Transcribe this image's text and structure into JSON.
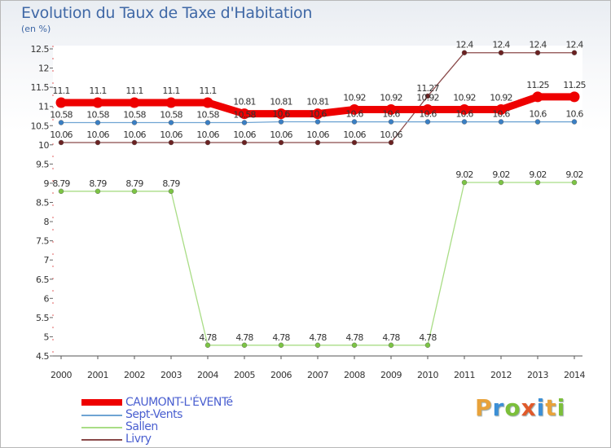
{
  "title": "Evolution du Taux de Taxe d'Habitation",
  "unit": "(en %)",
  "brand": "Proxiti",
  "brand_colors": [
    "#e8a23a",
    "#3c8fd6",
    "#7cbf3a",
    "#e05a2b",
    "#3c8fd6",
    "#e8a23a",
    "#7cbf3a"
  ],
  "chart_data": {
    "type": "line",
    "title": "Evolution du Taux de Taxe d'Habitation",
    "ylabel": "(en %)",
    "xlabel": "",
    "x": [
      "2000",
      "2001",
      "2002",
      "2003",
      "2004",
      "2005",
      "2006",
      "2007",
      "2008",
      "2009",
      "2010",
      "2011",
      "2012",
      "2013",
      "2014"
    ],
    "ylim": [
      4.5,
      12.5
    ],
    "yticks": [
      "4.5",
      "5",
      "5.5",
      "6",
      "6.5",
      "7",
      "7.5",
      "8",
      "8.5",
      "9",
      "9.5",
      "10",
      "10.5",
      "11",
      "11.5",
      "12",
      "12.5"
    ],
    "grid": false,
    "legend_position": "bottom-left",
    "series": [
      {
        "name": "CAUMONT-L'ÉVENTé",
        "color": "#ee0000",
        "thick": true,
        "values": [
          11.1,
          11.1,
          11.1,
          11.1,
          11.1,
          10.81,
          10.81,
          10.81,
          10.92,
          10.92,
          10.92,
          10.92,
          10.92,
          11.25,
          11.25
        ],
        "labels": [
          "11.1",
          "11.1",
          "11.1",
          "11.1",
          "11.1",
          "10.81",
          "10.81",
          "10.81",
          "10.92",
          "10.92",
          "10.92",
          "10.92",
          "10.92",
          "11.25",
          "11.25"
        ]
      },
      {
        "name": "Sept-Vents",
        "color": "#6fa4d3",
        "marker": "#3a7fc4",
        "thick": false,
        "values": [
          10.58,
          10.58,
          10.58,
          10.58,
          10.58,
          10.58,
          10.6,
          10.6,
          10.6,
          10.6,
          10.6,
          10.6,
          10.6,
          10.6,
          10.6
        ],
        "labels": [
          "10.58",
          "10.58",
          "10.58",
          "10.58",
          "10.58",
          "10.58",
          "10.6",
          "10.6",
          "10.6",
          "10.6",
          "10.6",
          "10.6",
          "10.6",
          "10.6",
          "10.6"
        ]
      },
      {
        "name": "Sallen",
        "color": "#a9dd86",
        "marker": "#7cc444",
        "thick": false,
        "values": [
          8.79,
          8.79,
          8.79,
          8.79,
          4.78,
          4.78,
          4.78,
          4.78,
          4.78,
          4.78,
          4.78,
          9.02,
          9.02,
          9.02,
          9.02
        ],
        "labels": [
          "8.79",
          "8.79",
          "8.79",
          "8.79",
          "4.78",
          "4.78",
          "4.78",
          "4.78",
          "4.78",
          "4.78",
          "4.78",
          "9.02",
          "9.02",
          "9.02",
          "9.02"
        ]
      },
      {
        "name": "Livry",
        "color": "#8a4a4a",
        "marker": "#6b2222",
        "thick": false,
        "values": [
          10.06,
          10.06,
          10.06,
          10.06,
          10.06,
          10.06,
          10.06,
          10.06,
          10.06,
          10.06,
          11.27,
          12.4,
          12.4,
          12.4,
          12.4
        ],
        "labels": [
          "10.06",
          "10.06",
          "10.06",
          "10.06",
          "10.06",
          "10.06",
          "10.06",
          "10.06",
          "10.06",
          "10.06",
          "11.27",
          "12.4",
          "12.4",
          "12.4",
          "12.4"
        ]
      }
    ]
  }
}
